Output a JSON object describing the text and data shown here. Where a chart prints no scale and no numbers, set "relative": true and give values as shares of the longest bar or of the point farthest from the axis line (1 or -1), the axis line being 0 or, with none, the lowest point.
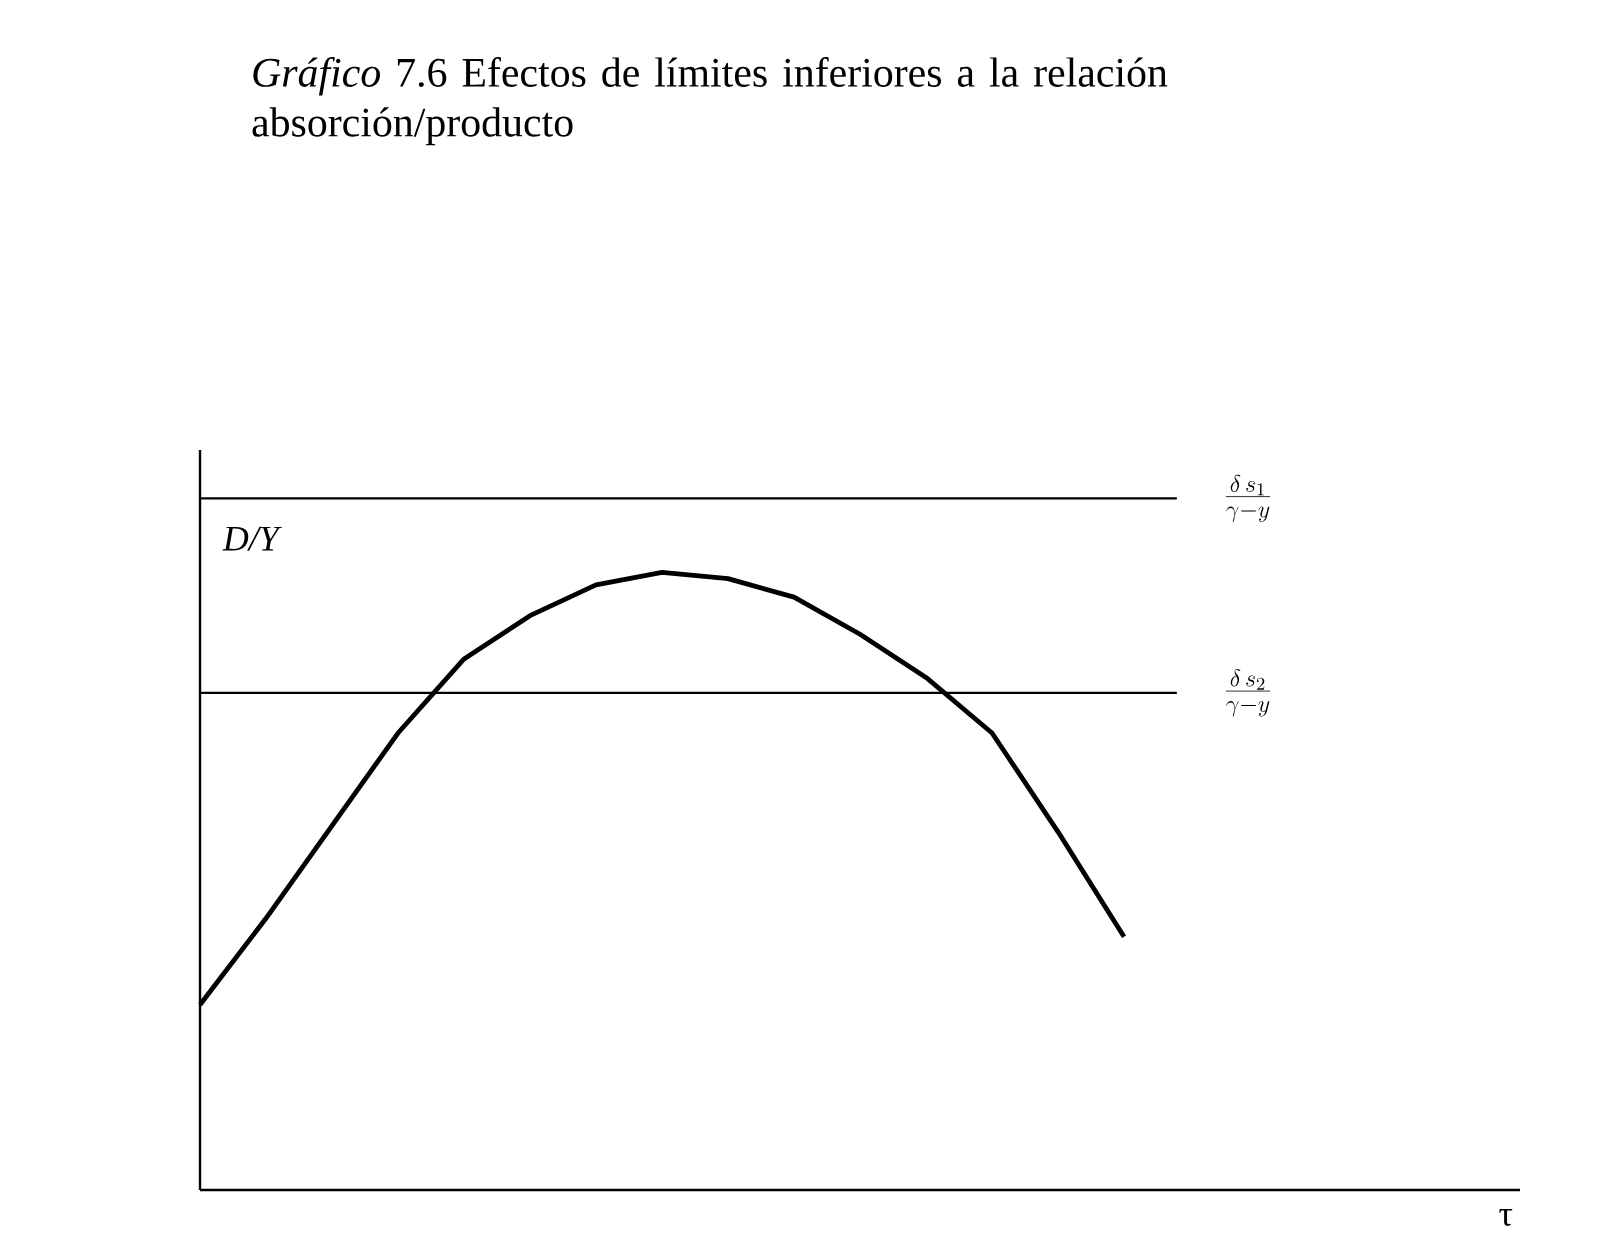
{
  "chart_data": {
    "type": "line",
    "title": "*Gráfico* 7.6  Efectos de límites inferiores a la relación absorción/producto",
    "xlabel": "τ",
    "ylabel": "D/Y",
    "relative": true,
    "categories": [
      null,
      null,
      null,
      null,
      null,
      null,
      null,
      null,
      null,
      null,
      null,
      null,
      null,
      null,
      null,
      null,
      null,
      null,
      null,
      null,
      null
    ],
    "series": [
      {
        "color": "#000000",
        "values": [
          0.3,
          0.44,
          0.59,
          0.74,
          0.86,
          0.93,
          0.98,
          1.0,
          0.99,
          0.96,
          0.9,
          0.83,
          0.74,
          0.58,
          0.41,
          null,
          null,
          null,
          null,
          null,
          null
        ]
      }
    ],
    "ref_lines": [
      {
        "axis": "y",
        "value": 1.12,
        "label": "\\frac{\\delta\\, s_1}{\\gamma - y}",
        "color": "#000000"
      },
      {
        "axis": "y",
        "value": 0.805,
        "label": "\\frac{\\delta\\, s_2}{\\gamma - y}",
        "color": "#000000"
      }
    ]
  }
}
